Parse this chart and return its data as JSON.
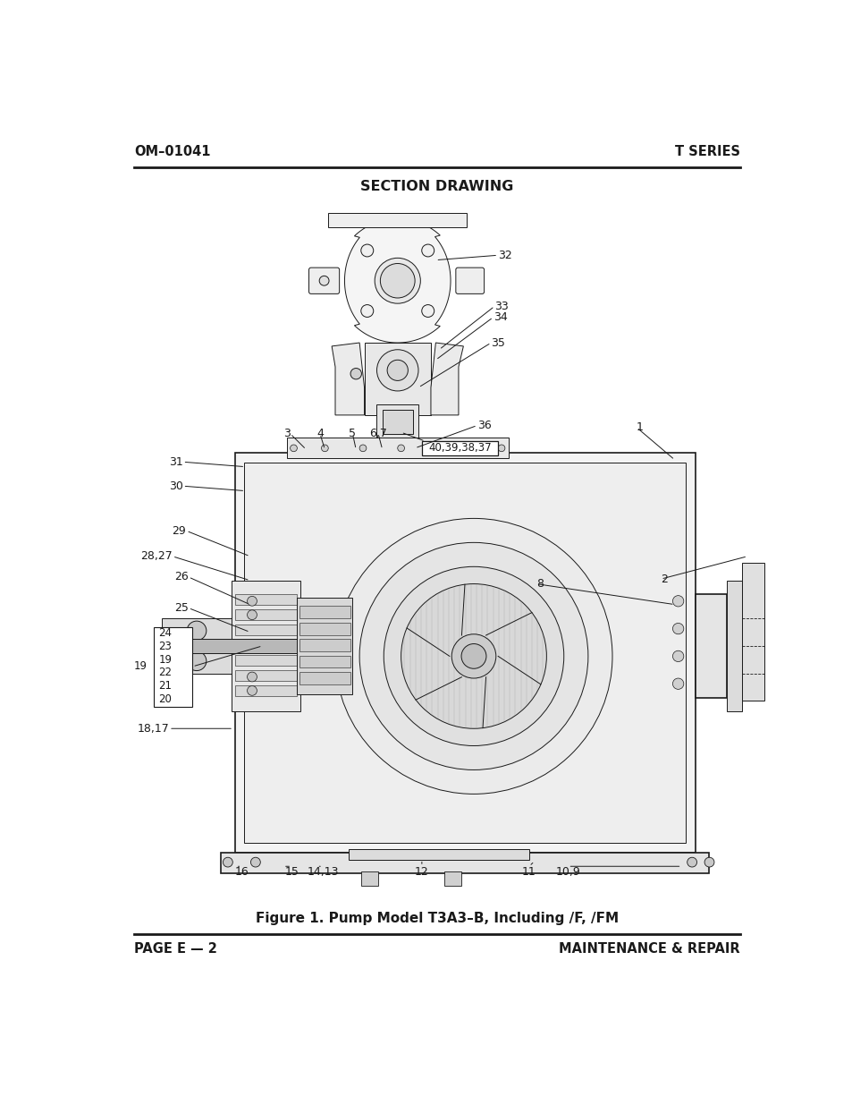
{
  "header_left": "OM–01041",
  "header_right": "T SERIES",
  "section_title": "SECTION DRAWING",
  "figure_caption": "Figure 1. Pump Model T3A3–B, Including /F, /FM",
  "footer_left": "PAGE E — 2",
  "footer_right": "MAINTENANCE & REPAIR",
  "bg_color": "#ffffff",
  "text_color": "#000000",
  "header_fontsize": 10.5,
  "title_fontsize": 11.5,
  "caption_fontsize": 11,
  "footer_fontsize": 10.5,
  "label_fontsize": 9
}
